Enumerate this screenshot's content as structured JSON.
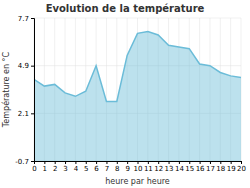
{
  "chart_data": {
    "type": "area",
    "title": "Evolution de la température",
    "x_label": "heure par heure",
    "y_label": "Température en °C",
    "x": [
      0,
      1,
      2,
      3,
      4,
      5,
      6,
      7,
      8,
      9,
      10,
      11,
      12,
      13,
      14,
      15,
      16,
      17,
      18,
      19,
      20
    ],
    "values": [
      4.1,
      3.7,
      3.8,
      3.3,
      3.1,
      3.4,
      4.9,
      2.8,
      2.8,
      5.5,
      6.8,
      6.9,
      6.7,
      6.1,
      6.0,
      5.9,
      5.0,
      4.9,
      4.5,
      4.3,
      4.2
    ],
    "color": "#6bbcd8",
    "xlim": [
      0,
      20
    ],
    "xticks": [
      0,
      1,
      2,
      3,
      4,
      5,
      6,
      7,
      8,
      9,
      10,
      11,
      12,
      13,
      14,
      15,
      16,
      17,
      18,
      19,
      20
    ],
    "ylim": [
      -0.7,
      7.7
    ],
    "yticks": [
      -0.7,
      2.1,
      4.9,
      7.7
    ],
    "grid": true
  }
}
